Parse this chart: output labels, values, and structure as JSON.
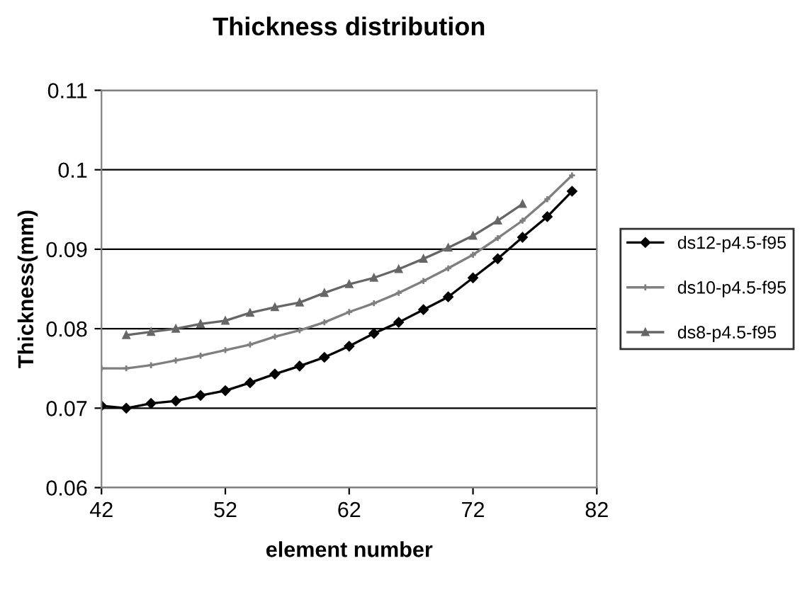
{
  "chart_data": {
    "type": "line",
    "title": "Thickness distribution",
    "xlabel": "element number",
    "ylabel": "Thickness(mm)",
    "xlim": [
      42,
      82
    ],
    "xticks": [
      42,
      52,
      62,
      72,
      82
    ],
    "ylim": [
      0.06,
      0.11
    ],
    "yticks": [
      0.06,
      0.07,
      0.08,
      0.09,
      0.1,
      0.11
    ],
    "grid": "y",
    "legend": "right",
    "line_style": "solid",
    "series": [
      {
        "name": "ds12-p4.5-f95",
        "color": "#000000",
        "marker": "diamond",
        "x": [
          42,
          44,
          46,
          48,
          50,
          52,
          54,
          56,
          58,
          60,
          62,
          64,
          66,
          68,
          70,
          72,
          74,
          76,
          78,
          80
        ],
        "values": [
          0.0703,
          0.07,
          0.0706,
          0.0709,
          0.0716,
          0.0722,
          0.0732,
          0.0743,
          0.0753,
          0.0764,
          0.0778,
          0.0794,
          0.0808,
          0.0824,
          0.084,
          0.0864,
          0.0888,
          0.0915,
          0.0941,
          0.0973
        ]
      },
      {
        "name": "ds10-p4.5-f95",
        "color": "#7f7f7f",
        "marker": "cross",
        "x": [
          42,
          44,
          46,
          48,
          50,
          52,
          54,
          56,
          58,
          60,
          62,
          64,
          66,
          68,
          70,
          72,
          74,
          76,
          78,
          80
        ],
        "values": [
          0.075,
          0.075,
          0.0754,
          0.076,
          0.0766,
          0.0773,
          0.078,
          0.079,
          0.0798,
          0.0808,
          0.0821,
          0.0832,
          0.0845,
          0.086,
          0.0876,
          0.0893,
          0.0914,
          0.0936,
          0.0963,
          0.0993
        ]
      },
      {
        "name": "ds8-p4.5-f95",
        "color": "#666666",
        "marker": "triangle",
        "x": [
          44,
          46,
          48,
          50,
          52,
          54,
          56,
          58,
          60,
          62,
          64,
          66,
          68,
          70,
          72,
          74,
          76
        ],
        "values": [
          0.0792,
          0.0796,
          0.08,
          0.0806,
          0.081,
          0.082,
          0.0827,
          0.0833,
          0.0845,
          0.0856,
          0.0864,
          0.0875,
          0.0888,
          0.0902,
          0.0917,
          0.0936,
          0.0957
        ]
      }
    ]
  }
}
